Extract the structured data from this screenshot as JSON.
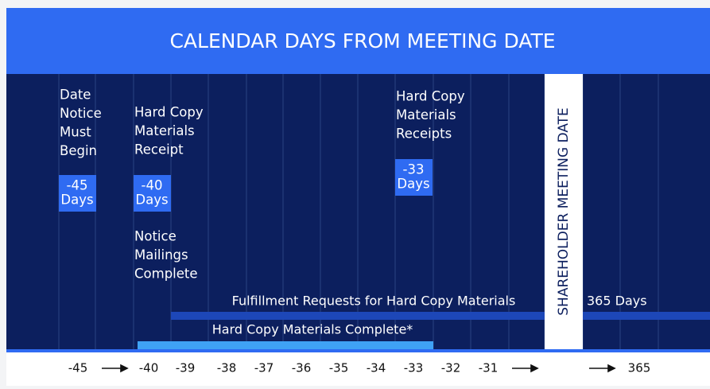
{
  "header": {
    "title": "CALENDAR DAYS FROM MEETING DATE"
  },
  "milestones": [
    {
      "lines": [
        "Date",
        "Notice",
        "Must",
        "Begin"
      ],
      "badge": [
        "-45",
        "Days"
      ]
    },
    {
      "lines": [
        "Hard Copy",
        "Materials",
        "Receipt"
      ],
      "badge": [
        "-40",
        "Days"
      ],
      "note": [
        "Notice",
        "Mailings",
        "Complete"
      ]
    },
    {
      "lines": [
        "Hard Copy",
        "Materials",
        "Receipts"
      ],
      "badge": [
        "-33",
        "Days"
      ]
    }
  ],
  "meeting": {
    "label": "SHAREHOLDER MEETING DATE"
  },
  "bars": [
    {
      "label": "Fulfillment Requests for Hard Copy Materials",
      "end_label": "365 Days"
    },
    {
      "label": "Hard Copy Materials Complete*"
    }
  ],
  "axis": [
    "-45",
    "-40",
    "-39",
    "-38",
    "-37",
    "-36",
    "-35",
    "-34",
    "-33",
    "-32",
    "-31",
    "365"
  ]
}
